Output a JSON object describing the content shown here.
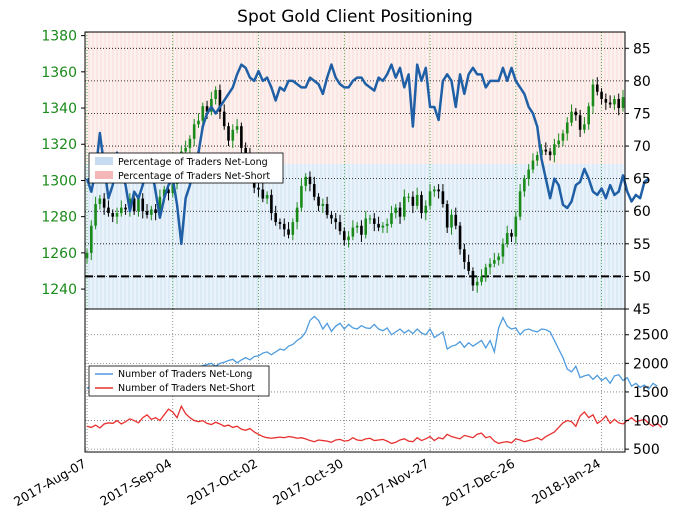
{
  "chart_data": [
    {
      "type": "candlestick+line",
      "title": "Spot Gold Client Positioning",
      "x_tick_labels": [
        "2017-Aug-07",
        "2017-Sep-04",
        "2017-Oct-02",
        "2017-Oct-30",
        "2017-Nov-27",
        "2017-Dec-26",
        "2018-Jan-24"
      ],
      "left_axis": {
        "ticks": [
          1240,
          1260,
          1280,
          1300,
          1320,
          1340,
          1360,
          1380
        ],
        "ylim": [
          1229,
          1382
        ],
        "color": "#1a8a1a"
      },
      "right_axis": {
        "ticks": [
          45,
          50,
          55,
          60,
          65,
          70,
          75,
          80,
          85
        ],
        "ylim": [
          45,
          87.5
        ]
      },
      "legend": [
        {
          "label": "Percentage of Traders Net-Long",
          "color": "#c6dbef"
        },
        {
          "label": "Percentage of Traders Net-Short",
          "color": "#f4b6b6"
        }
      ],
      "reference_line": {
        "value": 50,
        "style": "dashed"
      },
      "series": [
        {
          "name": "Price (candles)",
          "values": [
            1260,
            1275,
            1287,
            1290,
            1285,
            1282,
            1280,
            1282,
            1285,
            1284,
            1290,
            1283,
            1290,
            1283,
            1281,
            1284,
            1282,
            1291,
            1295,
            1293,
            1298,
            1306,
            1316,
            1318,
            1323,
            1331,
            1333,
            1341,
            1338,
            1345,
            1350,
            1338,
            1330,
            1322,
            1328,
            1330,
            1318,
            1314,
            1309,
            1296,
            1295,
            1290,
            1292,
            1282,
            1277,
            1276,
            1273,
            1270,
            1277,
            1285,
            1297,
            1302,
            1298,
            1291,
            1286,
            1287,
            1281,
            1279,
            1277,
            1272,
            1267,
            1269,
            1274,
            1275,
            1270,
            1279,
            1279,
            1276,
            1274,
            1275,
            1276,
            1282,
            1285,
            1280,
            1291,
            1291,
            1286,
            1292,
            1282,
            1286,
            1294,
            1295,
            1294,
            1287,
            1274,
            1281,
            1275,
            1262,
            1255,
            1250,
            1242,
            1244,
            1247,
            1252,
            1254,
            1256,
            1258,
            1265,
            1271,
            1269,
            1280,
            1294,
            1301,
            1306,
            1311,
            1314,
            1317,
            1316,
            1314,
            1320,
            1322,
            1326,
            1332,
            1338,
            1336,
            1328,
            1331,
            1341,
            1353,
            1349,
            1345,
            1343,
            1342,
            1345,
            1340,
            1346
          ]
        },
        {
          "name": "Percentage of Traders Net-Long",
          "values": [
            65,
            63,
            66,
            72,
            67,
            62,
            64,
            69,
            66,
            64,
            60,
            63,
            62,
            64,
            67,
            67,
            63,
            59,
            62,
            64,
            65,
            61,
            55,
            62,
            64,
            67,
            69,
            73,
            75,
            76,
            75,
            76,
            77,
            78,
            79,
            81,
            82.5,
            82,
            80.5,
            80,
            81.5,
            80,
            80.5,
            79,
            77,
            79,
            78.5,
            80,
            80,
            79.5,
            79,
            79,
            80.5,
            80,
            79.5,
            78,
            80.5,
            82.5,
            80.5,
            79.5,
            79,
            79,
            80,
            80.5,
            80.5,
            79.5,
            79,
            78.5,
            80.5,
            80,
            81,
            82.5,
            80.5,
            82,
            79,
            81,
            73,
            82.5,
            80,
            82,
            76,
            76,
            74,
            80,
            81,
            80,
            76,
            81,
            78,
            81,
            82,
            81,
            81,
            79,
            80,
            80,
            80,
            82,
            80,
            82,
            80,
            79,
            78,
            76,
            75,
            73,
            68,
            65,
            62,
            65,
            64,
            61,
            60.5,
            61.5,
            64,
            64.5,
            66.5,
            65,
            63,
            62.5,
            63.5,
            62,
            64,
            62.5,
            63,
            65.5,
            63,
            61.5,
            62.5,
            62,
            64.5,
            65
          ]
        }
      ]
    },
    {
      "type": "line",
      "right_axis": {
        "ticks": [
          500,
          1000,
          1500,
          2000,
          2500
        ],
        "ylim": [
          450,
          2950
        ]
      },
      "legend": [
        {
          "label": "Number of Traders Net-Long",
          "color": "#4f9cde"
        },
        {
          "label": "Number of Traders Net-Short",
          "color": "#e8312f"
        }
      ],
      "series": [
        {
          "name": "Number of Traders Net-Long",
          "values": [
            1560,
            1600,
            1580,
            1620,
            1650,
            1700,
            1680,
            1650,
            1720,
            1750,
            1690,
            1700,
            1720,
            1780,
            1750,
            1800,
            1820,
            1780,
            1800,
            1850,
            1820,
            1870,
            1880,
            1900,
            1920,
            1870,
            1930,
            1960,
            1980,
            2000,
            1950,
            2000,
            2020,
            2050,
            2070,
            2010,
            2060,
            2100,
            2060,
            2120,
            2130,
            2180,
            2200,
            2150,
            2200,
            2250,
            2230,
            2300,
            2330,
            2400,
            2450,
            2550,
            2750,
            2820,
            2750,
            2600,
            2700,
            2560,
            2650,
            2700,
            2600,
            2680,
            2620,
            2600,
            2660,
            2620,
            2610,
            2680,
            2600,
            2570,
            2620,
            2500,
            2550,
            2600,
            2530,
            2580,
            2520,
            2600,
            2530,
            2500,
            2600,
            2450,
            2500,
            2550,
            2250,
            2300,
            2320,
            2380,
            2280,
            2360,
            2300,
            2350,
            2400,
            2270,
            2400,
            2200,
            2620,
            2800,
            2650,
            2600,
            2620,
            2500,
            2580,
            2600,
            2570,
            2550,
            2600,
            2590,
            2550,
            2400,
            2250,
            2100,
            1900,
            1850,
            1950,
            1750,
            1780,
            1800,
            1720,
            1790,
            1700,
            1750,
            1650,
            1780,
            1800,
            1700,
            1750,
            1600,
            1650,
            1580,
            1620,
            1550,
            1650,
            1600
          ]
        },
        {
          "name": "Number of Traders Net-Short",
          "values": [
            900,
            880,
            920,
            870,
            940,
            960,
            950,
            1000,
            940,
            980,
            1030,
            1000,
            960,
            1050,
            1100,
            1020,
            1050,
            1000,
            1100,
            1200,
            1150,
            1050,
            1250,
            1120,
            1050,
            1000,
            980,
            1000,
            950,
            930,
            970,
            940,
            900,
            920,
            880,
            900,
            850,
            830,
            860,
            800,
            760,
            720,
            700,
            690,
            700,
            710,
            700,
            720,
            710,
            690,
            700,
            680,
            650,
            630,
            660,
            650,
            640,
            620,
            660,
            670,
            640,
            650,
            700,
            660,
            650,
            680,
            690,
            650,
            660,
            670,
            640,
            600,
            620,
            660,
            680,
            640,
            630,
            700,
            650,
            680,
            720,
            650,
            700,
            680,
            760,
            720,
            700,
            680,
            740,
            720,
            700,
            760,
            780,
            700,
            720,
            640,
            600,
            620,
            630,
            610,
            680,
            660,
            630,
            650,
            670,
            700,
            660,
            720,
            760,
            800,
            880,
            960,
            1000,
            980,
            900,
            1080,
            1150,
            1050,
            1100,
            950,
            1000,
            1080,
            950,
            1020,
            960,
            940,
            1000,
            1050,
            980,
            1000,
            1020,
            950,
            900,
            950,
            880
          ]
        }
      ]
    }
  ]
}
